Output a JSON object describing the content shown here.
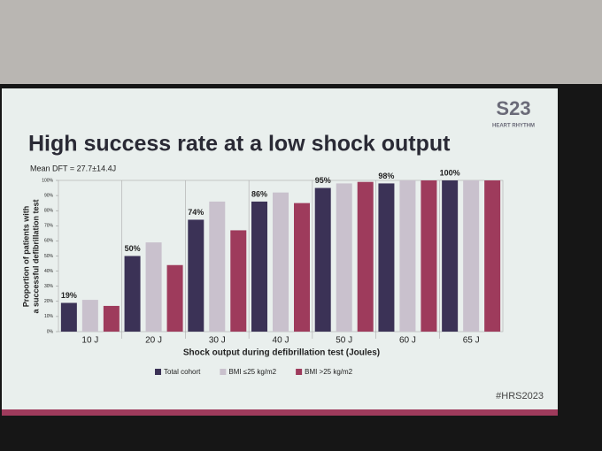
{
  "chart_data": {
    "type": "bar",
    "title": "High success rate at a low shock output",
    "subtitle": "Mean DFT = 27.7±14.4J",
    "ylabel": [
      "Proportion of patients with",
      "a successful defibrillation test"
    ],
    "xlabel": "Shock output during defibrillation test (Joules)",
    "categories": [
      "10 J",
      "20 J",
      "30 J",
      "40 J",
      "50 J",
      "60 J",
      "65 J"
    ],
    "series": [
      {
        "name": "Total cohort",
        "color": "#3b3256",
        "values": [
          19,
          50,
          74,
          86,
          95,
          98,
          100
        ],
        "value_labels": [
          "19%",
          "50%",
          "74%",
          "86%",
          "95%",
          "98%",
          "100%"
        ]
      },
      {
        "name": "BMI ≤25 kg/m2",
        "color": "#c9c1cd",
        "values": [
          21,
          59,
          86,
          92,
          98,
          100,
          100
        ]
      },
      {
        "name": "BMI >25 kg/m2",
        "color": "#9e3b5c",
        "values": [
          17,
          44,
          67,
          85,
          99,
          100,
          100
        ]
      }
    ],
    "ylim": [
      0,
      100
    ],
    "yticks": [
      {
        "value": 0,
        "label": "0%"
      },
      {
        "value": 10,
        "label": "10%"
      },
      {
        "value": 20,
        "label": "20%"
      },
      {
        "value": 30,
        "label": "30%"
      },
      {
        "value": 40,
        "label": "40%"
      },
      {
        "value": 50,
        "label": "50%"
      },
      {
        "value": 60,
        "label": "60%"
      },
      {
        "value": 70,
        "label": "70%"
      },
      {
        "value": 80,
        "label": "80%"
      },
      {
        "value": 90,
        "label": "90%"
      },
      {
        "value": 100,
        "label": "100%"
      }
    ],
    "grid": false,
    "legend": "bottom"
  },
  "logo": {
    "mark": "S23",
    "text": "HEART RHYTHM"
  },
  "hashtag": "#HRS2023"
}
